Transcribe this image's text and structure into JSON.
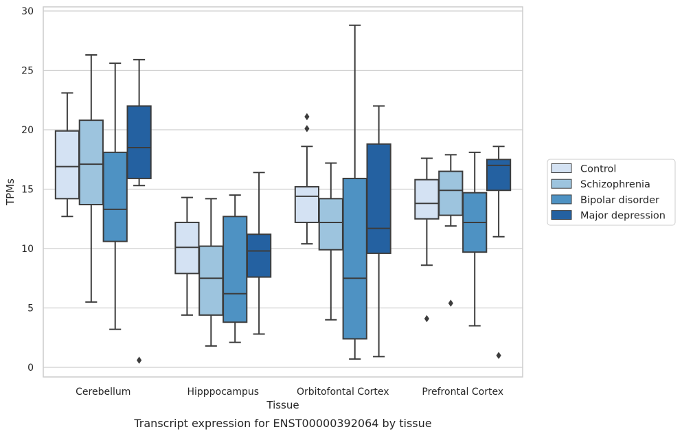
{
  "chart_data": {
    "type": "box",
    "title": "Transcript expression for ENST00000392064 by tissue",
    "xlabel": "Tissue",
    "ylabel": "TPMs",
    "ylim": [
      -0.6,
      30.3
    ],
    "yticks": [
      0,
      5,
      10,
      15,
      20,
      25,
      30
    ],
    "grid": "horizontal",
    "legend_position": "right",
    "categories": [
      "Cerebellum",
      "Hipppocampus",
      "Orbitofontal Cortex",
      "Prefrontal Cortex"
    ],
    "colors": {
      "Control": "#d4e2f3",
      "Schizophrenia": "#9dc4de",
      "Bipolar disorder": "#4e92c3",
      "Major depression": "#2461a1",
      "edge": "#3c3c3c",
      "grid": "#cfcfcf",
      "frame": "#cccccc"
    },
    "series": [
      {
        "name": "Control",
        "boxes": [
          {
            "whislo": 12.7,
            "q1": 14.2,
            "med": 16.9,
            "q3": 19.9,
            "whishi": 23.1,
            "fliers": []
          },
          {
            "whislo": 4.4,
            "q1": 7.9,
            "med": 10.1,
            "q3": 12.2,
            "whishi": 14.3,
            "fliers": []
          },
          {
            "whislo": 10.4,
            "q1": 12.2,
            "med": 14.4,
            "q3": 15.2,
            "whishi": 18.6,
            "fliers": [
              20.1,
              21.1
            ]
          },
          {
            "whislo": 8.6,
            "q1": 12.5,
            "med": 13.8,
            "q3": 15.8,
            "whishi": 17.6,
            "fliers": [
              4.1
            ]
          }
        ]
      },
      {
        "name": "Schizophrenia",
        "boxes": [
          {
            "whislo": 5.5,
            "q1": 13.7,
            "med": 17.1,
            "q3": 20.8,
            "whishi": 26.3,
            "fliers": []
          },
          {
            "whislo": 1.8,
            "q1": 4.4,
            "med": 7.5,
            "q3": 10.2,
            "whishi": 14.2,
            "fliers": []
          },
          {
            "whislo": 4.0,
            "q1": 9.9,
            "med": 12.2,
            "q3": 14.2,
            "whishi": 17.2,
            "fliers": []
          },
          {
            "whislo": 11.9,
            "q1": 12.8,
            "med": 14.9,
            "q3": 16.5,
            "whishi": 17.9,
            "fliers": [
              5.4
            ]
          }
        ]
      },
      {
        "name": "Bipolar disorder",
        "boxes": [
          {
            "whislo": 3.2,
            "q1": 10.6,
            "med": 13.3,
            "q3": 18.1,
            "whishi": 25.6,
            "fliers": []
          },
          {
            "whislo": 2.1,
            "q1": 3.8,
            "med": 6.2,
            "q3": 12.7,
            "whishi": 14.5,
            "fliers": []
          },
          {
            "whislo": 0.7,
            "q1": 2.4,
            "med": 7.5,
            "q3": 15.9,
            "whishi": 28.8,
            "fliers": []
          },
          {
            "whislo": 3.5,
            "q1": 9.7,
            "med": 12.2,
            "q3": 14.7,
            "whishi": 18.1,
            "fliers": []
          }
        ]
      },
      {
        "name": "Major depression",
        "boxes": [
          {
            "whislo": 15.3,
            "q1": 15.9,
            "med": 18.5,
            "q3": 22.0,
            "whishi": 25.9,
            "fliers": [
              0.6
            ]
          },
          {
            "whislo": 2.8,
            "q1": 7.6,
            "med": 9.8,
            "q3": 11.2,
            "whishi": 16.4,
            "fliers": []
          },
          {
            "whislo": 0.9,
            "q1": 9.6,
            "med": 11.7,
            "q3": 18.8,
            "whishi": 22.0,
            "fliers": []
          },
          {
            "whislo": 11.0,
            "q1": 14.9,
            "med": 17.0,
            "q3": 17.5,
            "whishi": 18.6,
            "fliers": [
              1.0
            ]
          }
        ]
      }
    ]
  }
}
